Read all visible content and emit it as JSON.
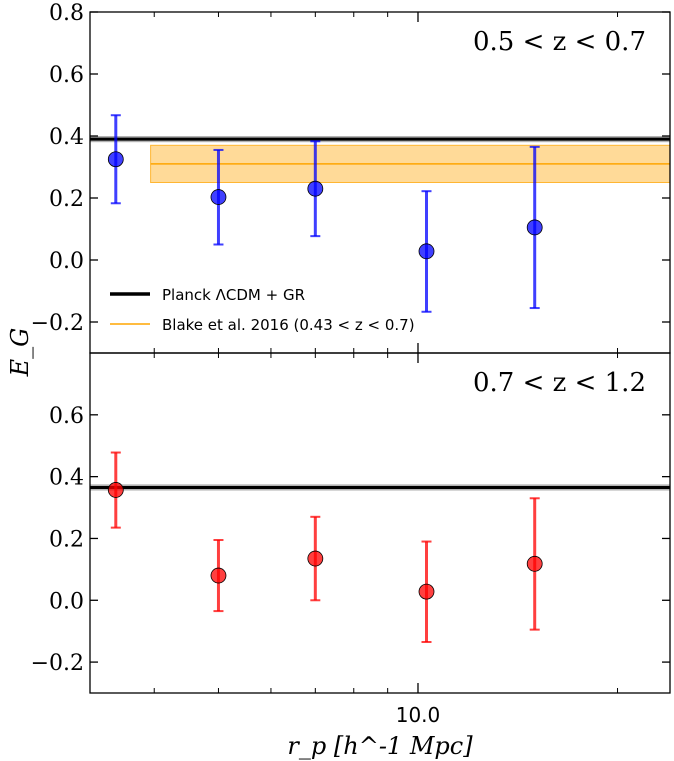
{
  "chart_data": {
    "type": "scatter",
    "xlabel": "r_p [h^-1 Mpc]",
    "ylabel": "E_G",
    "x_scale": "log",
    "xlim": [
      3.2,
      24.0
    ],
    "x_tick_labels": [
      {
        "value": 10.0,
        "label": "10.0"
      }
    ],
    "colors": {
      "planck": "#000000",
      "blake": "#ffa500",
      "blake_band": "#ffd27f",
      "panel1_points": "#0000ff",
      "panel2_points": "#ff0000"
    },
    "panels": [
      {
        "label": "0.5 < z < 0.7",
        "ylim": [
          -0.3,
          0.8
        ],
        "y_ticks": [
          -0.2,
          0.0,
          0.2,
          0.4,
          0.6,
          0.8
        ],
        "y_tick_labels": [
          "−0.2",
          "0.0",
          "0.2",
          "0.4",
          "0.6",
          "0.8"
        ],
        "planck": {
          "value": 0.39,
          "band": [
            0.38,
            0.4
          ]
        },
        "blake": {
          "value": 0.31,
          "band": [
            0.25,
            0.37
          ],
          "x_range": [
            3.95,
            24.0
          ]
        },
        "series": [
          {
            "x": [
              3.5,
              5.0,
              7.0,
              10.3,
              15.0
            ],
            "y": [
              0.325,
              0.203,
              0.23,
              0.028,
              0.105
            ],
            "ylow": [
              0.183,
              0.05,
              0.077,
              -0.167,
              -0.155
            ],
            "yhigh": [
              0.467,
              0.355,
              0.383,
              0.222,
              0.365
            ]
          }
        ],
        "legend": {
          "position": "lower left",
          "entries": [
            {
              "label": "Planck ΛCDM + GR",
              "series": "planck"
            },
            {
              "label": "Blake et al. 2016 (0.43 < z < 0.7)",
              "series": "blake"
            }
          ]
        }
      },
      {
        "label": "0.7 < z < 1.2",
        "ylim": [
          -0.3,
          0.8
        ],
        "y_ticks": [
          -0.2,
          0.0,
          0.2,
          0.4,
          0.6
        ],
        "y_tick_labels": [
          "−0.2",
          "0.0",
          "0.2",
          "0.4",
          "0.6"
        ],
        "planck": {
          "value": 0.365,
          "band": [
            0.355,
            0.375
          ]
        },
        "series": [
          {
            "x": [
              3.5,
              5.0,
              7.0,
              10.3,
              15.0
            ],
            "y": [
              0.357,
              0.08,
              0.135,
              0.028,
              0.118
            ],
            "ylow": [
              0.235,
              -0.035,
              0.0,
              -0.135,
              -0.095
            ],
            "yhigh": [
              0.478,
              0.195,
              0.27,
              0.19,
              0.33
            ]
          }
        ]
      }
    ]
  }
}
